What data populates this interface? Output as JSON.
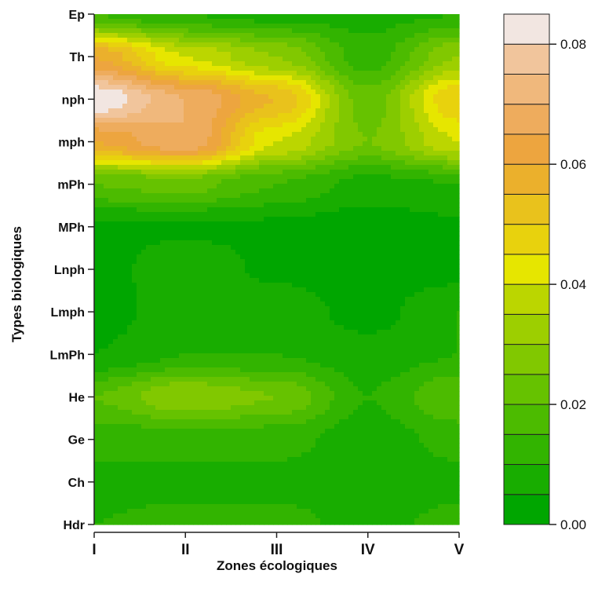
{
  "chart_data": {
    "type": "heatmap",
    "title": "",
    "xlabel": "Zones écologiques",
    "ylabel": "Types biologiques",
    "x_categories": [
      "I",
      "II",
      "III",
      "IV",
      "V"
    ],
    "y_categories": [
      "Ep",
      "Th",
      "nph",
      "mph",
      "mPh",
      "MPh",
      "Lnph",
      "Lmph",
      "LmPh",
      "He",
      "Ge",
      "Ch",
      "Hdr"
    ],
    "values": [
      [
        0.015,
        0.01,
        0.008,
        0.008,
        0.01
      ],
      [
        0.06,
        0.04,
        0.03,
        0.012,
        0.03
      ],
      [
        0.085,
        0.07,
        0.055,
        0.022,
        0.05
      ],
      [
        0.06,
        0.07,
        0.04,
        0.025,
        0.04
      ],
      [
        0.02,
        0.022,
        0.015,
        0.008,
        0.01
      ],
      [
        0.004,
        0.004,
        0.004,
        0.002,
        0.004
      ],
      [
        0.003,
        0.008,
        0.004,
        0.002,
        0.003
      ],
      [
        0.002,
        0.009,
        0.008,
        0.003,
        0.01
      ],
      [
        0.005,
        0.01,
        0.01,
        0.007,
        0.01
      ],
      [
        0.02,
        0.03,
        0.025,
        0.01,
        0.02
      ],
      [
        0.012,
        0.012,
        0.012,
        0.007,
        0.012
      ],
      [
        0.008,
        0.008,
        0.008,
        0.005,
        0.008
      ],
      [
        0.01,
        0.012,
        0.012,
        0.008,
        0.012
      ]
    ],
    "colorbar": {
      "range": [
        0,
        0.085
      ],
      "ticks": [
        "0.00",
        "0.02",
        "0.04",
        "0.06",
        "0.08"
      ],
      "levels": 17,
      "colors": [
        "#00a600",
        "#18ad00",
        "#32b400",
        "#4cbb00",
        "#66c200",
        "#81c800",
        "#9dcf00",
        "#bbd600",
        "#e6e600",
        "#e8d20d",
        "#e9c21c",
        "#ebb02c",
        "#eda53f",
        "#eeac5d",
        "#f0b87c",
        "#f1c59c",
        "#f2e6e1"
      ]
    }
  }
}
